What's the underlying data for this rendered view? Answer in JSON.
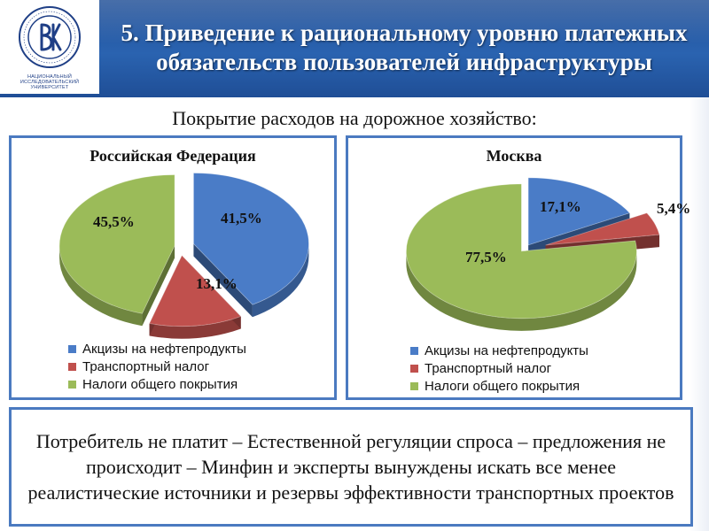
{
  "header": {
    "title": "5. Приведение к рациональному уровню платежных обязательств пользователей инфраструктуры",
    "logo_caption": "НАЦИОНАЛЬНЫЙ ИССЛЕДОВАТЕЛЬСКИЙ УНИВЕРСИТЕТ",
    "colors": {
      "band": "#2a63b0",
      "logo_blue": "#1f3f86"
    }
  },
  "subtitle": "Покрытие расходов на дорожное хозяйство:",
  "chart_data": [
    {
      "type": "pie",
      "title": "Российская Федерация",
      "categories": [
        "Акцизы на нефтепродукты",
        "Транспортный налог",
        "Налоги общего покрытия"
      ],
      "values": [
        41.5,
        13.1,
        45.5
      ],
      "labels": [
        "41,5%",
        "13,1%",
        "45,5%"
      ],
      "colors": [
        "#4a7cc7",
        "#c0504d",
        "#9bbb59"
      ],
      "legend_position": "bottom-left"
    },
    {
      "type": "pie",
      "title": "Москва",
      "categories": [
        "Акцизы на нефтепродукты",
        "Транспортный налог",
        "Налоги общего покрытия"
      ],
      "values": [
        17.1,
        5.4,
        77.5
      ],
      "labels": [
        "17,1%",
        "5,4%",
        "77,5%"
      ],
      "colors": [
        "#4a7cc7",
        "#c0504d",
        "#9bbb59"
      ],
      "legend_position": "bottom-left"
    }
  ],
  "footer": {
    "text": "Потребитель не платит – Естественной регуляции спроса – предложения не происходит – Минфин и эксперты вынуждены искать все менее реалистические источники и резервы эффективности транспортных проектов"
  }
}
